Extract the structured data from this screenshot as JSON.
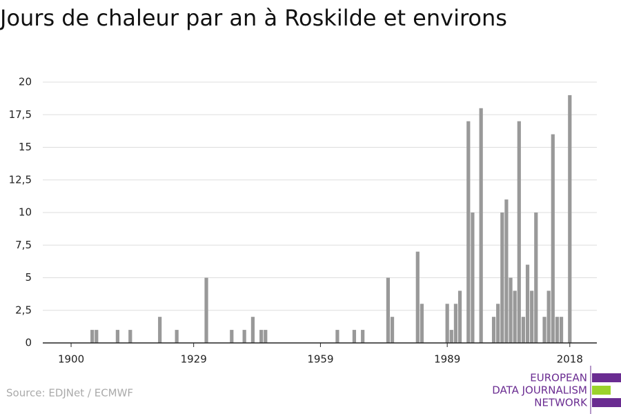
{
  "chart_data": {
    "type": "bar",
    "title": "Jours de chaleur par an à Roskilde et environs",
    "source": "Source: EDJNet / ECMWF",
    "logo": [
      "EUROPEAN",
      "DATA JOURNALISM",
      "NETWORK"
    ],
    "color": "#999999",
    "x": [
      1905,
      1906,
      1911,
      1914,
      1921,
      1925,
      1932,
      1938,
      1941,
      1943,
      1945,
      1946,
      1963,
      1967,
      1969,
      1975,
      1976,
      1982,
      1983,
      1989,
      1990,
      1991,
      1992,
      1994,
      1995,
      1997,
      2000,
      2001,
      2002,
      2003,
      2004,
      2005,
      2006,
      2007,
      2008,
      2009,
      2010,
      2012,
      2013,
      2014,
      2015,
      2016,
      2018
    ],
    "values": [
      1,
      1,
      1,
      1,
      2,
      1,
      5,
      1,
      1,
      2,
      1,
      1,
      1,
      1,
      1,
      5,
      2,
      7,
      3,
      3,
      1,
      3,
      4,
      17,
      10,
      18,
      2,
      3,
      10,
      11,
      5,
      4,
      17,
      2,
      6,
      4,
      10,
      2,
      4,
      16,
      2,
      2,
      19
    ],
    "xlim": [
      1893.3,
      2024.4
    ],
    "xticks": [
      1900,
      1929,
      1959,
      1989,
      2018
    ],
    "ylim": [
      0,
      20
    ],
    "yticks": [
      0,
      {
        "value": 2.5,
        "label": "2,5"
      },
      5,
      {
        "value": 7.5,
        "label": "7,5"
      },
      10,
      {
        "value": 12.5,
        "label": "12,5"
      },
      15,
      {
        "value": 17.5,
        "label": "17,5"
      },
      20
    ],
    "grid": true
  }
}
